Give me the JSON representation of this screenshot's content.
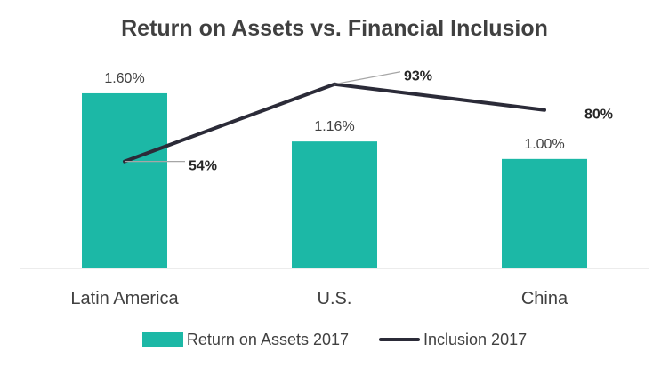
{
  "chart_data": {
    "type": "bar+line",
    "title": "Return on Assets vs. Financial Inclusion",
    "categories": [
      "Latin America",
      "U.S.",
      "China"
    ],
    "series": [
      {
        "name": "Return on Assets 2017",
        "type": "bar",
        "values": [
          1.6,
          1.16,
          1.0
        ],
        "labels": [
          "1.60%",
          "1.16%",
          "1.00%"
        ],
        "color": "#1cb8a6"
      },
      {
        "name": "Inclusion 2017",
        "type": "line",
        "values": [
          54,
          93,
          80
        ],
        "labels": [
          "54%",
          "93%",
          "80%"
        ],
        "color": "#2b2b38"
      }
    ],
    "bar_axis_range": [
      0,
      1.9
    ],
    "line_axis_range": [
      0,
      105
    ],
    "grid": false,
    "legend_position": "bottom"
  }
}
